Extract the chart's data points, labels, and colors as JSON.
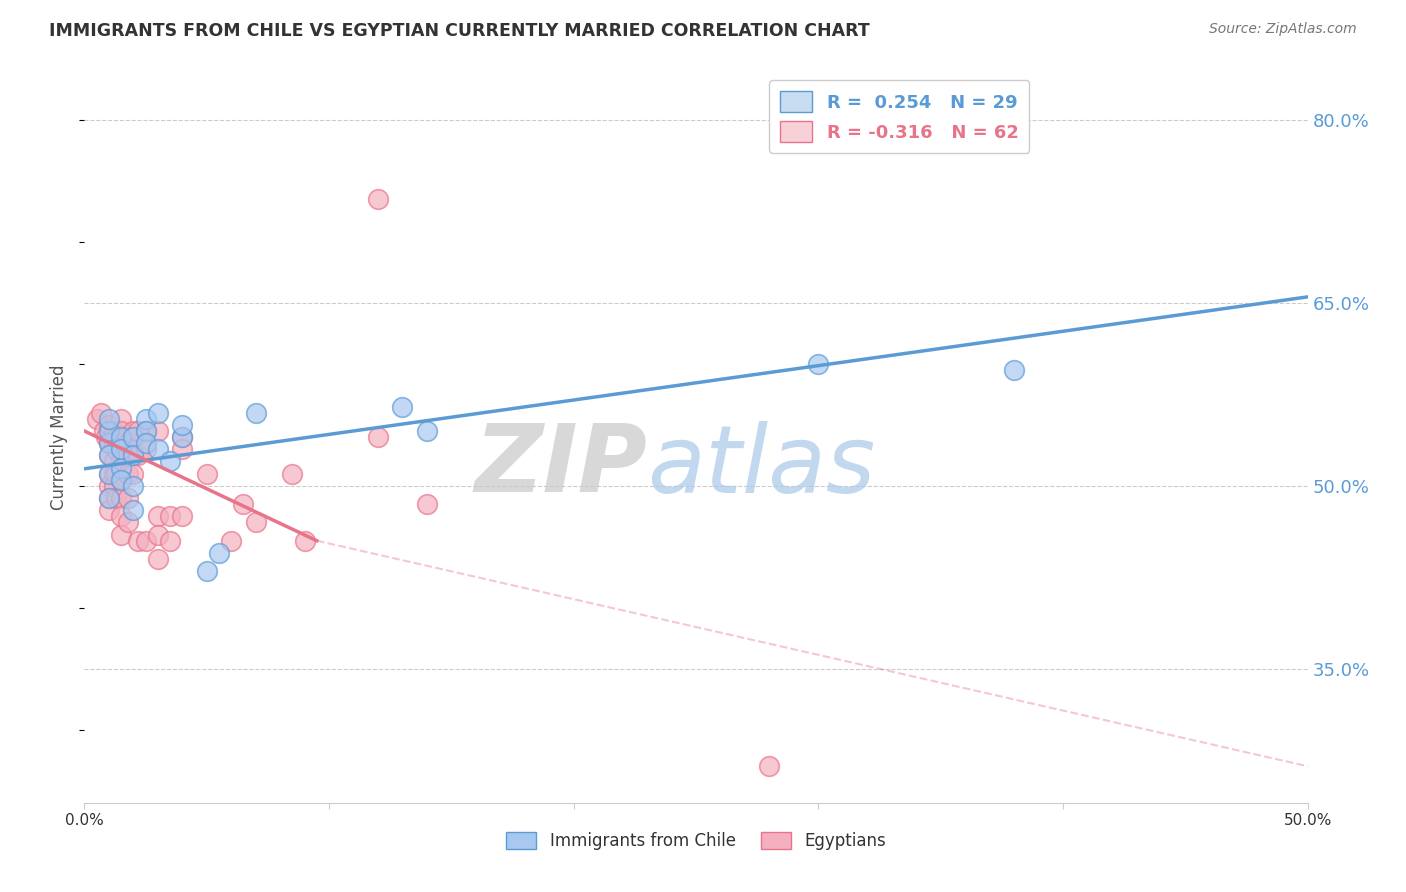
{
  "title": "IMMIGRANTS FROM CHILE VS EGYPTIAN CURRENTLY MARRIED CORRELATION CHART",
  "source": "Source: ZipAtlas.com",
  "ylabel": "Currently Married",
  "watermark_zip": "ZIP",
  "watermark_atlas": "atlas",
  "xlim": [
    0.0,
    0.5
  ],
  "ylim": [
    0.24,
    0.84
  ],
  "xticks": [
    0.0,
    0.1,
    0.2,
    0.3,
    0.4,
    0.5
  ],
  "xtick_labels": [
    "0.0%",
    "",
    "",
    "",
    "",
    "50.0%"
  ],
  "ytick_vals_right": [
    0.8,
    0.65,
    0.5,
    0.35
  ],
  "ytick_labels_right": [
    "80.0%",
    "65.0%",
    "50.0%",
    "35.0%"
  ],
  "legend_entries": [
    {
      "label": "R =  0.254   N = 29",
      "color": "#5b9bd5"
    },
    {
      "label": "R = -0.316   N = 62",
      "color": "#e8748a"
    }
  ],
  "legend_bottom": [
    {
      "label": "Immigrants from Chile",
      "color_face": "#a8c8f0",
      "color_edge": "#5b9bd5"
    },
    {
      "label": "Egyptians",
      "color_face": "#f4b0c0",
      "color_edge": "#e8748a"
    }
  ],
  "chile_points": [
    [
      0.01,
      0.535
    ],
    [
      0.01,
      0.525
    ],
    [
      0.01,
      0.51
    ],
    [
      0.01,
      0.49
    ],
    [
      0.01,
      0.545
    ],
    [
      0.01,
      0.555
    ],
    [
      0.015,
      0.54
    ],
    [
      0.015,
      0.515
    ],
    [
      0.015,
      0.505
    ],
    [
      0.015,
      0.53
    ],
    [
      0.02,
      0.54
    ],
    [
      0.02,
      0.525
    ],
    [
      0.02,
      0.48
    ],
    [
      0.02,
      0.5
    ],
    [
      0.025,
      0.555
    ],
    [
      0.025,
      0.545
    ],
    [
      0.025,
      0.535
    ],
    [
      0.03,
      0.56
    ],
    [
      0.03,
      0.53
    ],
    [
      0.035,
      0.52
    ],
    [
      0.04,
      0.54
    ],
    [
      0.04,
      0.55
    ],
    [
      0.05,
      0.43
    ],
    [
      0.055,
      0.445
    ],
    [
      0.07,
      0.56
    ],
    [
      0.13,
      0.565
    ],
    [
      0.14,
      0.545
    ],
    [
      0.3,
      0.6
    ],
    [
      0.38,
      0.595
    ]
  ],
  "egypt_points": [
    [
      0.005,
      0.555
    ],
    [
      0.007,
      0.56
    ],
    [
      0.008,
      0.545
    ],
    [
      0.009,
      0.54
    ],
    [
      0.01,
      0.55
    ],
    [
      0.01,
      0.535
    ],
    [
      0.01,
      0.525
    ],
    [
      0.01,
      0.51
    ],
    [
      0.01,
      0.5
    ],
    [
      0.01,
      0.49
    ],
    [
      0.01,
      0.48
    ],
    [
      0.012,
      0.545
    ],
    [
      0.012,
      0.535
    ],
    [
      0.012,
      0.52
    ],
    [
      0.012,
      0.51
    ],
    [
      0.012,
      0.5
    ],
    [
      0.013,
      0.54
    ],
    [
      0.013,
      0.53
    ],
    [
      0.013,
      0.51
    ],
    [
      0.013,
      0.49
    ],
    [
      0.015,
      0.555
    ],
    [
      0.015,
      0.545
    ],
    [
      0.015,
      0.535
    ],
    [
      0.015,
      0.52
    ],
    [
      0.015,
      0.505
    ],
    [
      0.015,
      0.49
    ],
    [
      0.015,
      0.475
    ],
    [
      0.015,
      0.46
    ],
    [
      0.017,
      0.54
    ],
    [
      0.017,
      0.525
    ],
    [
      0.018,
      0.535
    ],
    [
      0.018,
      0.51
    ],
    [
      0.018,
      0.49
    ],
    [
      0.018,
      0.47
    ],
    [
      0.02,
      0.545
    ],
    [
      0.02,
      0.53
    ],
    [
      0.02,
      0.51
    ],
    [
      0.022,
      0.545
    ],
    [
      0.022,
      0.525
    ],
    [
      0.022,
      0.455
    ],
    [
      0.025,
      0.545
    ],
    [
      0.025,
      0.53
    ],
    [
      0.025,
      0.455
    ],
    [
      0.03,
      0.545
    ],
    [
      0.03,
      0.475
    ],
    [
      0.03,
      0.46
    ],
    [
      0.03,
      0.44
    ],
    [
      0.035,
      0.475
    ],
    [
      0.035,
      0.455
    ],
    [
      0.04,
      0.475
    ],
    [
      0.04,
      0.54
    ],
    [
      0.04,
      0.53
    ],
    [
      0.05,
      0.51
    ],
    [
      0.06,
      0.455
    ],
    [
      0.065,
      0.485
    ],
    [
      0.07,
      0.47
    ],
    [
      0.085,
      0.51
    ],
    [
      0.09,
      0.455
    ],
    [
      0.12,
      0.54
    ],
    [
      0.12,
      0.735
    ],
    [
      0.14,
      0.485
    ],
    [
      0.28,
      0.27
    ]
  ],
  "chile_line": {
    "x0": 0.0,
    "y0": 0.514,
    "x1": 0.5,
    "y1": 0.655
  },
  "egypt_line_solid": {
    "x0": 0.0,
    "y0": 0.545,
    "x1": 0.095,
    "y1": 0.455
  },
  "egypt_line_dashed": {
    "x0": 0.095,
    "y0": 0.455,
    "x1": 0.5,
    "y1": 0.27
  },
  "chile_color": "#5b9bd5",
  "egypt_color": "#e8748a",
  "chile_scatter_color": "#a8c8f0",
  "egypt_scatter_color": "#f4b0c0",
  "background_color": "#ffffff",
  "grid_color": "#cccccc",
  "axis_label_color": "#5b9bd5",
  "title_color": "#333333"
}
